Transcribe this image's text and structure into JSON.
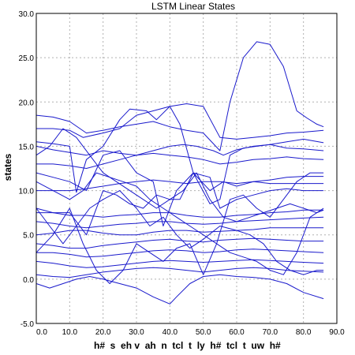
{
  "chart_data": {
    "type": "line",
    "title": "LSTM Linear States",
    "ylabel": "states",
    "xlabel": "h#  s  eh v  ah  n  tcl  t  ly  h#  tcl  t  uw  h#",
    "xlim": [
      0,
      90
    ],
    "ylim": [
      -5,
      30
    ],
    "x_ticks": [
      "0.0",
      "10.0",
      "20.0",
      "30.0",
      "40.0",
      "50.0",
      "60.0",
      "70.0",
      "80.0",
      "90.0"
    ],
    "y_ticks": [
      "-5.0",
      "0.0",
      "5.0",
      "10.0",
      "15.0",
      "20.0",
      "25.0",
      "30.0"
    ],
    "grid": true,
    "line_color": "#1a1acc",
    "series": [
      {
        "x": [
          0,
          5,
          10,
          15,
          20,
          25,
          30,
          35,
          40,
          45,
          50,
          55,
          58,
          62,
          66,
          70,
          74,
          78,
          81,
          84,
          86
        ],
        "values": [
          18.5,
          18.3,
          17.8,
          16.5,
          16.8,
          17.2,
          17.5,
          17.8,
          17.2,
          16.8,
          16.5,
          14.5,
          20,
          25,
          26.8,
          26.5,
          24,
          19,
          18.2,
          17.5,
          17.2
        ]
      },
      {
        "x": [
          0,
          5,
          10,
          14,
          20,
          25,
          30,
          35,
          40,
          45,
          50,
          55,
          60,
          65,
          70,
          75,
          80,
          86
        ],
        "values": [
          17,
          17,
          16.8,
          16,
          16.5,
          17,
          18.5,
          19,
          19.5,
          19.8,
          19.5,
          16,
          15.8,
          16,
          16.2,
          16.5,
          16.6,
          16.8
        ]
      },
      {
        "x": [
          0,
          5,
          10,
          12,
          15,
          20,
          25,
          28,
          33,
          36,
          40,
          43,
          47,
          52,
          55,
          58,
          62,
          66,
          70,
          75,
          80,
          86
        ],
        "values": [
          15.5,
          15.3,
          15,
          9.8,
          13.5,
          15,
          18,
          19.2,
          19,
          18,
          19.5,
          17.5,
          12,
          8.5,
          9,
          14,
          14.8,
          15,
          15.2,
          15.5,
          15.8,
          15.4
        ]
      },
      {
        "x": [
          0,
          5,
          10,
          15,
          20,
          25,
          30,
          35,
          40,
          44,
          48,
          53,
          56,
          60,
          65,
          70,
          75,
          80,
          86
        ],
        "values": [
          15,
          14.6,
          14.3,
          14,
          14.5,
          14.2,
          14,
          14.5,
          15,
          15.2,
          15,
          14.5,
          14,
          14.6,
          15,
          15.2,
          14.8,
          14.7,
          14.5
        ]
      },
      {
        "x": [
          0,
          5,
          10,
          15,
          20,
          25,
          30,
          35,
          40,
          45,
          50,
          55,
          60,
          65,
          70,
          75,
          80,
          86
        ],
        "values": [
          13,
          13,
          12.8,
          12.5,
          13,
          13.5,
          14,
          14.2,
          14,
          13.8,
          13.5,
          13,
          13.2,
          13.5,
          13.6,
          13.8,
          13.6,
          13.5
        ]
      },
      {
        "x": [
          0,
          5,
          10,
          15,
          20,
          25,
          30,
          35,
          38,
          42,
          47,
          52,
          56,
          60,
          65,
          70,
          75,
          80,
          86
        ],
        "values": [
          12,
          11.5,
          11,
          10,
          14,
          14.5,
          12,
          11,
          6,
          10,
          12,
          10,
          11,
          10.5,
          11,
          11.2,
          11.5,
          11.6,
          11.6
        ]
      },
      {
        "x": [
          0,
          5,
          10,
          15,
          20,
          25,
          30,
          35,
          40,
          45,
          50,
          55,
          60,
          65,
          70,
          75,
          80,
          86
        ],
        "values": [
          10,
          10,
          10,
          10.2,
          10.5,
          10.8,
          11,
          11.2,
          11,
          10.8,
          11,
          11,
          10.8,
          11,
          10.8,
          10.8,
          10.8,
          10.8
        ]
      },
      {
        "x": [
          0,
          5,
          10,
          15,
          20,
          24,
          28,
          32,
          36,
          40,
          43,
          47,
          52,
          55,
          60,
          65,
          70,
          75,
          80,
          86
        ],
        "values": [
          8,
          7.5,
          7.5,
          5,
          10,
          9.5,
          8.5,
          8,
          9.5,
          9,
          9,
          12,
          11.5,
          8,
          9,
          9.5,
          10,
          10.2,
          10,
          10
        ]
      },
      {
        "x": [
          0,
          5,
          10,
          15,
          20,
          25,
          30,
          35,
          40,
          45,
          50,
          55,
          60,
          65,
          70,
          75,
          80,
          86
        ],
        "values": [
          7.5,
          7.5,
          7.2,
          7.2,
          7,
          7.2,
          7.3,
          7.5,
          7.5,
          7.2,
          7,
          7,
          7.2,
          7.3,
          7.5,
          7.6,
          7.8,
          7.8
        ]
      },
      {
        "x": [
          0,
          5,
          10,
          15,
          20,
          25,
          30,
          35,
          40,
          45,
          50,
          55,
          60,
          65,
          70,
          75,
          80,
          86
        ],
        "values": [
          6.5,
          6.3,
          6,
          5.8,
          6,
          6.2,
          6.3,
          6.5,
          6.5,
          6.3,
          6.2,
          6.3,
          6.5,
          6.6,
          6.7,
          6.8,
          6.9,
          7
        ]
      },
      {
        "x": [
          0,
          5,
          10,
          15,
          20,
          25,
          30,
          35,
          40,
          45,
          50,
          55,
          60,
          65,
          70,
          75,
          80,
          86
        ],
        "values": [
          5,
          5.2,
          5.5,
          5.5,
          5.2,
          5,
          5,
          5.3,
          5.5,
          5.5,
          5.3,
          5.4,
          5.5,
          5.6,
          5.8,
          5.8,
          5.8,
          5.8
        ]
      },
      {
        "x": [
          0,
          5,
          10,
          15,
          20,
          25,
          30,
          35,
          40,
          45,
          50,
          55,
          60,
          65,
          70,
          75,
          80,
          86
        ],
        "values": [
          4,
          3.8,
          3.5,
          3.5,
          3.8,
          4,
          4.2,
          4.4,
          4.5,
          4.3,
          4.2,
          4.4,
          4.5,
          4.6,
          4.5,
          4.4,
          4.3,
          4.3
        ]
      },
      {
        "x": [
          0,
          5,
          10,
          15,
          20,
          25,
          30,
          35,
          40,
          45,
          50,
          55,
          60,
          65,
          70,
          75,
          80,
          86
        ],
        "values": [
          3,
          3,
          2.8,
          2.5,
          2.6,
          2.8,
          3,
          3.2,
          3.3,
          3.2,
          3,
          3.1,
          3.3,
          3.4,
          3.3,
          3.2,
          3.1,
          3
        ]
      },
      {
        "x": [
          0,
          5,
          10,
          15,
          20,
          25,
          30,
          35,
          40,
          45,
          50,
          55,
          60,
          65,
          70,
          75,
          80,
          86
        ],
        "values": [
          2,
          1.8,
          1.5,
          1.3,
          1.4,
          1.6,
          1.8,
          2,
          2.1,
          2,
          1.9,
          2,
          2.1,
          2.2,
          2.1,
          2,
          1.9,
          1.8
        ]
      },
      {
        "x": [
          0,
          5,
          10,
          15,
          20,
          25,
          30,
          35,
          40,
          45,
          50,
          55,
          60,
          65,
          70,
          75,
          80,
          86
        ],
        "values": [
          0.5,
          0.3,
          0.2,
          0.5,
          0.8,
          1,
          1.2,
          1.3,
          1.2,
          1,
          0.8,
          1,
          1.2,
          1.3,
          1.2,
          1,
          0.9,
          0.8
        ]
      },
      {
        "x": [
          0,
          4,
          8,
          12,
          16,
          20,
          25,
          30,
          35,
          40,
          42,
          46,
          50,
          55,
          60,
          65,
          70,
          75,
          80,
          86
        ],
        "values": [
          -0.5,
          -1,
          -0.5,
          0,
          0.3,
          0,
          -0.5,
          -1,
          -2,
          -2.8,
          -2,
          -0.5,
          0.3,
          0.5,
          0.3,
          0.2,
          0,
          -0.5,
          -1.5,
          -2.2
        ]
      },
      {
        "x": [
          0,
          5,
          10,
          14,
          18,
          22,
          26,
          30,
          34,
          38,
          42,
          46,
          50,
          54,
          58,
          62,
          66,
          70,
          74,
          78,
          82,
          86
        ],
        "values": [
          3,
          5,
          8,
          4,
          1,
          -0.5,
          1,
          4,
          3,
          2,
          3.5,
          4,
          0.5,
          4,
          9,
          9.5,
          8,
          7,
          9,
          11,
          12,
          12
        ]
      },
      {
        "x": [
          0,
          4,
          8,
          12,
          16,
          20,
          25,
          30,
          34,
          38,
          42,
          46,
          50,
          55,
          60,
          64,
          68,
          72,
          76,
          80,
          84,
          86
        ],
        "values": [
          8,
          6,
          4,
          6,
          8,
          9,
          10,
          8,
          6,
          7,
          5,
          3.5,
          4.5,
          6,
          5.5,
          5,
          4,
          2,
          1,
          0.5,
          1,
          1
        ]
      },
      {
        "x": [
          0,
          4,
          8,
          12,
          16,
          20,
          24,
          28,
          32,
          36,
          40,
          44,
          48,
          52,
          56,
          60,
          64,
          68,
          72,
          76,
          80,
          84,
          86
        ],
        "values": [
          14,
          15,
          17,
          16,
          14,
          12,
          11,
          10,
          9,
          8,
          9,
          10,
          12,
          9,
          7,
          6.5,
          7,
          7.5,
          8,
          8.5,
          8,
          7.5,
          7.8
        ]
      },
      {
        "x": [
          0,
          5,
          10,
          14,
          18,
          22,
          26,
          30,
          34,
          38,
          42,
          46,
          50,
          54,
          58,
          62,
          66,
          70,
          74,
          78,
          82,
          86
        ],
        "values": [
          11,
          10,
          9,
          10,
          12,
          11.5,
          11,
          10.5,
          9,
          8,
          7,
          6,
          5,
          4,
          3,
          2.5,
          2,
          1,
          0.5,
          3,
          7,
          8
        ]
      }
    ]
  }
}
